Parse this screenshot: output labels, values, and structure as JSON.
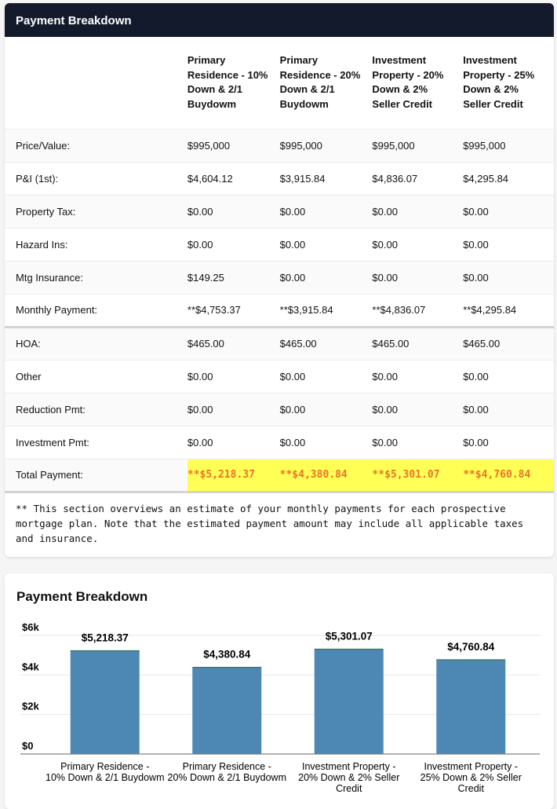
{
  "table": {
    "title": "Payment Breakdown",
    "columns": [
      "Primary Residence - 10% Down & 2/1 Buydowm",
      "Primary Residence - 20% Down & 2/1 Buydowm",
      "Investment Property - 20% Down & 2% Seller Credit",
      "Investment Property - 25% Down & 2% Seller Credit"
    ],
    "rows": [
      {
        "label": "Price/Value:",
        "values": [
          "$995,000",
          "$995,000",
          "$995,000",
          "$995,000"
        ]
      },
      {
        "label": "P&I (1st):",
        "values": [
          "$4,604.12",
          "$3,915.84",
          "$4,836.07",
          "$4,295.84"
        ]
      },
      {
        "label": "Property Tax:",
        "values": [
          "$0.00",
          "$0.00",
          "$0.00",
          "$0.00"
        ]
      },
      {
        "label": "Hazard Ins:",
        "values": [
          "$0.00",
          "$0.00",
          "$0.00",
          "$0.00"
        ]
      },
      {
        "label": "Mtg Insurance:",
        "values": [
          "$149.25",
          "$0.00",
          "$0.00",
          "$0.00"
        ]
      },
      {
        "label": "Monthly Payment:",
        "values": [
          "**$4,753.37",
          "**$3,915.84",
          "**$4,836.07",
          "**$4,295.84"
        ]
      },
      {
        "label": "HOA:",
        "values": [
          "$465.00",
          "$465.00",
          "$465.00",
          "$465.00"
        ]
      },
      {
        "label": "Other",
        "values": [
          "$0.00",
          "$0.00",
          "$0.00",
          "$0.00"
        ]
      },
      {
        "label": "Reduction Pmt:",
        "values": [
          "$0.00",
          "$0.00",
          "$0.00",
          "$0.00"
        ]
      },
      {
        "label": "Investment Pmt:",
        "values": [
          "$0.00",
          "$0.00",
          "$0.00",
          "$0.00"
        ]
      },
      {
        "label": "Total Payment:",
        "values": [
          "**$5,218.37",
          "**$4,380.84",
          "**$5,301.07",
          "**$4,760.84"
        ]
      }
    ],
    "note": "** This section overviews an estimate of your monthly payments for each prospective mortgage plan. Note that the estimated payment amount may include all applicable taxes and insurance."
  },
  "chart_data": {
    "type": "bar",
    "title": "Payment Breakdown",
    "categories": [
      "Primary Residence - 10% Down & 2/1 Buydowm",
      "Primary Residence - 20% Down & 2/1 Buydowm",
      "Investment Property - 20% Down & 2% Seller Credit",
      "Investment Property - 25% Down & 2% Seller Credit"
    ],
    "values": [
      5218.37,
      4380.84,
      5301.07,
      4760.84
    ],
    "data_labels": [
      "$5,218.37",
      "$4,380.84",
      "$5,301.07",
      "$4,760.84"
    ],
    "yticks": [
      0,
      2000,
      4000,
      6000
    ],
    "ytick_labels": [
      "$0",
      "$2k",
      "$4k",
      "$6k"
    ],
    "ylim": [
      0,
      6000
    ],
    "bar_color": "#4d88b4",
    "grid": true
  }
}
